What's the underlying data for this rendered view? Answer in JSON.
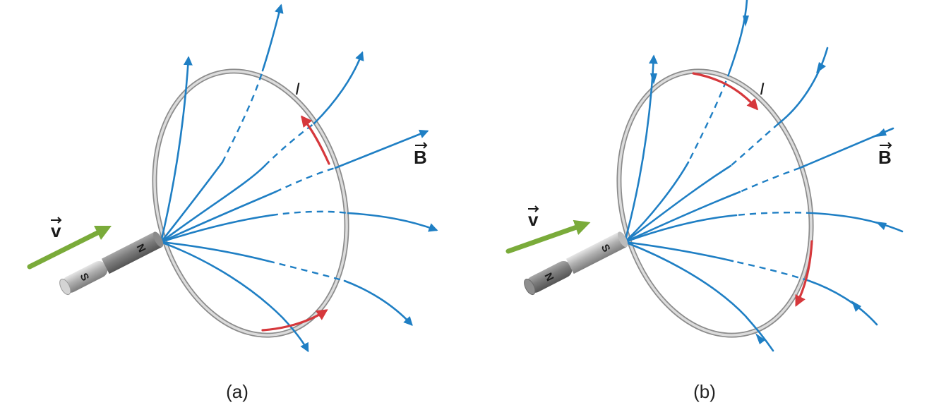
{
  "panels": [
    {
      "caption": "(a)",
      "velocity_label": "v",
      "field_label": "B",
      "current_label": "I",
      "magnet_near_pole": "N",
      "magnet_far_pole": "S"
    },
    {
      "caption": "(b)",
      "velocity_label": "v",
      "field_label": "B",
      "current_label": "I",
      "magnet_near_pole": "S",
      "magnet_far_pole": "N"
    }
  ],
  "colors": {
    "field_lines": "#1f7fc4",
    "current_arrows": "#d6383c",
    "velocity_arrow": "#7aab3a",
    "loop": "#8c8c8c",
    "magnet": "#9a9a9a"
  }
}
